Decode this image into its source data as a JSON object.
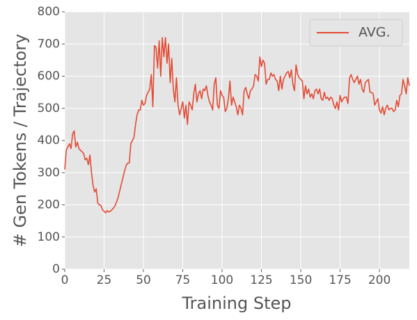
{
  "chart_data": {
    "type": "line",
    "xlabel": "Training Step",
    "ylabel": "# Gen Tokens / Trajectory",
    "xlim": [
      0,
      219
    ],
    "ylim": [
      0,
      800
    ],
    "xticks": [
      0,
      25,
      50,
      75,
      100,
      125,
      150,
      175,
      200
    ],
    "yticks": [
      0,
      100,
      200,
      300,
      400,
      500,
      600,
      700,
      800
    ],
    "grid": true,
    "legend": "upper right",
    "x": [
      0,
      1,
      2,
      3,
      4,
      5,
      6,
      7,
      8,
      9,
      10,
      11,
      12,
      13,
      14,
      15,
      16,
      17,
      18,
      19,
      20,
      21,
      22,
      23,
      24,
      25,
      26,
      27,
      28,
      29,
      30,
      31,
      32,
      33,
      34,
      35,
      36,
      37,
      38,
      39,
      40,
      41,
      42,
      43,
      44,
      45,
      46,
      47,
      48,
      49,
      50,
      51,
      52,
      53,
      54,
      55,
      56,
      57,
      58,
      59,
      60,
      61,
      62,
      63,
      64,
      65,
      66,
      67,
      68,
      69,
      70,
      71,
      72,
      73,
      74,
      75,
      76,
      77,
      78,
      79,
      80,
      81,
      82,
      83,
      84,
      85,
      86,
      87,
      88,
      89,
      90,
      91,
      92,
      93,
      94,
      95,
      96,
      97,
      98,
      99,
      100,
      101,
      102,
      103,
      104,
      105,
      106,
      107,
      108,
      109,
      110,
      111,
      112,
      113,
      114,
      115,
      116,
      117,
      118,
      119,
      120,
      121,
      122,
      123,
      124,
      125,
      126,
      127,
      128,
      129,
      130,
      131,
      132,
      133,
      134,
      135,
      136,
      137,
      138,
      139,
      140,
      141,
      142,
      143,
      144,
      145,
      146,
      147,
      148,
      149,
      150,
      151,
      152,
      153,
      154,
      155,
      156,
      157,
      158,
      159,
      160,
      161,
      162,
      163,
      164,
      165,
      166,
      167,
      168,
      169,
      170,
      171,
      172,
      173,
      174,
      175,
      176,
      177,
      178,
      179,
      180,
      181,
      182,
      183,
      184,
      185,
      186,
      187,
      188,
      189,
      190,
      191,
      192,
      193,
      194,
      195,
      196,
      197,
      198,
      199,
      200,
      201,
      202,
      203,
      204,
      205,
      206,
      207,
      208,
      209,
      210,
      211,
      212,
      213,
      214,
      215,
      216,
      217,
      218,
      219
    ],
    "series": [
      {
        "name": "AVG.",
        "color": "#e24a33",
        "values": [
          310,
          370,
          380,
          390,
          375,
          420,
          430,
          380,
          395,
          375,
          370,
          365,
          360,
          340,
          345,
          325,
          355,
          300,
          260,
          240,
          250,
          205,
          200,
          198,
          185,
          180,
          175,
          182,
          178,
          180,
          185,
          190,
          198,
          210,
          225,
          245,
          265,
          285,
          305,
          322,
          330,
          330,
          390,
          400,
          410,
          450,
          480,
          495,
          495,
          525,
          510,
          515,
          540,
          550,
          560,
          605,
          505,
          695,
          690,
          625,
          710,
          600,
          720,
          660,
          720,
          640,
          700,
          580,
          655,
          560,
          520,
          595,
          510,
          480,
          500,
          520,
          470,
          510,
          450,
          520,
          510,
          495,
          545,
          575,
          520,
          545,
          555,
          530,
          560,
          555,
          570,
          540,
          520,
          510,
          495,
          575,
          595,
          510,
          500,
          555,
          540,
          535,
          490,
          500,
          530,
          585,
          510,
          535,
          520,
          505,
          480,
          510,
          500,
          480,
          555,
          565,
          545,
          530,
          555,
          560,
          570,
          605,
          600,
          585,
          660,
          630,
          650,
          640,
          575,
          590,
          590,
          610,
          600,
          605,
          590,
          585,
          555,
          600,
          560,
          590,
          600,
          610,
          615,
          595,
          620,
          575,
          555,
          635,
          605,
          595,
          590,
          585,
          530,
          570,
          545,
          560,
          535,
          545,
          530,
          555,
          560,
          545,
          560,
          530,
          525,
          550,
          530,
          535,
          525,
          535,
          530,
          510,
          500,
          520,
          495,
          540,
          520,
          530,
          535,
          535,
          515,
          595,
          605,
          590,
          580,
          590,
          600,
          575,
          590,
          560,
          550,
          580,
          585,
          590,
          550,
          550,
          545,
          510,
          520,
          530,
          495,
          485,
          505,
          480,
          500,
          510,
          495,
          500,
          500,
          490,
          495,
          525,
          505,
          540,
          545,
          590,
          570,
          545,
          595,
          570
        ]
      }
    ]
  }
}
